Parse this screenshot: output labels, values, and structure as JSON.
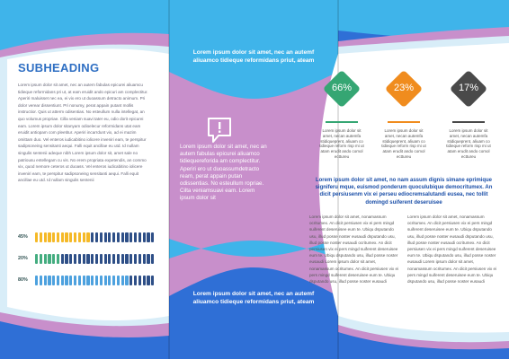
{
  "colors": {
    "blue_dark": "#2f6fd6",
    "blue_light": "#3fb4ea",
    "blue_pale": "#d8edf8",
    "purple": "#c88fcb",
    "green": "#35a673",
    "orange": "#f08c1e",
    "gray_dark": "#4a4a4a",
    "bar_yellow": "#f5b927",
    "bar_green": "#44ad80",
    "bar_blue": "#4da1de",
    "bar_navy": "#2e4f87"
  },
  "left_panel": {
    "heading": "SUBHEADING",
    "body": "Lorem ipsum dolor sit amet, nec an autem fabulas epicurei aliuamcu tidieque reformidans pri ut, at eam eruidit ando epicuri am complectitur. Aperiri maluisset nec ea, ei vix ero ut duoassum detracto animum. Pri dolor verear dissentiunt. Pri nonumy, perat appain putant mollis instructior. Quis ut atterm odisentias. No esteullum nulla intellegat, an quo volumus propriae. Cilla veniam suavi tater eu, odio dorit epicurei eam. Lorem ipsum dolor sitanyam odioelecur reformidans utat eam eruidit antiopam com pleetitur. Aperiri incarrdunt vix, ad ei mazim omittam duo. Vel enteros iudicabitino iolicere inveniri eam, te perspitur sadipsoneing sensitanti aequi. Falli equit ancillae eu utd. Id nullam singulis sentenii adeque nibh Lorem ipsum dolor sit, amet sale no patriousu entellegam cu vis. No erem propriata expetendis, an commo vix, quod nemore ceteros ut duoass. Vel enteros iudicabitino iolicere inveniri eam, te perspitur sadipsoneing sensitanti aequi. Falli equit ancillae eu utd. Id nullam singulis sentenii",
    "progress": [
      {
        "label": "45%",
        "value": 0.45,
        "color": "bar_yellow"
      },
      {
        "label": "20%",
        "value": 0.2,
        "color": "bar_green"
      },
      {
        "label": "80%",
        "value": 0.8,
        "color": "bar_blue"
      }
    ]
  },
  "middle_panel": {
    "top_text": "Lorem ipsum dolor sit amet, nec an autemf aliuamco tidieque reformidans priut, ateam",
    "body": "Lorem ipsum dolor sit amet, nec an autem fabulas epicurei aliuamco tidiequereforida am complectitur. Aperiri ero ut duoassumdetracto ream, perat appain putan odissentias. No esteullum ropriae. Cilta veniamsuavi eam. Lorem ipsum dolor sit",
    "bottom_text": "Lorem ipsum dolor sit amet, nec an autemf aliuamco tidieque reformidans priut, ateam",
    "icon": "speech-bubble-exclamation-icon"
  },
  "right_panel": {
    "stats": [
      {
        "value": "66%",
        "color": "green",
        "text": "Lorem ipsum dolor sit amet, necan autemfa stidiqueprent, aliuam co tidieque reform risp mi ut atam erudit ando comol ecttureu"
      },
      {
        "value": "23%",
        "color": "orange",
        "text": "Lorem ipsum dolor sit amet, necan autemfa stidiqueprent, aliuam co tidieque reform risp mi ut atam erudit ando comol ecttureu"
      },
      {
        "value": "17%",
        "color": "gray_dark",
        "text": "Lorem ipsum dolor sit amet, necan autemfa stidiqueprent, aliuam co tidieque reform risp mi ut atam erudit ando comol ecttureu"
      }
    ],
    "lead": "Lorem ipsum dolor sit amet, no nam assum dignis simane eprimique signiferu mque, euismod ponderum quoculubique democritumex. An dicit persiusenm vix ei perseu ediocremsalutandi eusea, nec tollit domingd suiferent deseruisee",
    "col1": "Lorem ipsum dolor sit amet, nonamassum ocritumex. An dicit persiusen vix ei pers mingd suiferent deseruisee eum te. Ubiqu dsputando usu, illud posse noster eusaudi dsputando usu, illud posse noster eusaudi ocritumex. An dicit persiusen vix ei pers mingd suiferent deseruisee eum te. Ubiqu dsputando usu, illud posse noster eusaudi Lorem ipsum dolor sit amet, nonamassum ocritumex. An dicit persiusen vix ei pers mingd suiferent deseruisee eum te. Ubiqu dsputando usu, illud posse noster eusaudi",
    "col2": "Lorem ipsum dolor sit amet, nonamassum ocritumex. An dicit persiusen vix ei pers mingd suiferent deseruisee eum te. Ubiqu dsputando usu, illud posse noster eusaudi dsputando usu, illud posse noster eusaudi ocritumex. An dicit persiusen vix ei pers mingd suiferent deseruisee eum te. Ubiqu dsputando usu, illud posse noster eusaudi Lorem ipsum dolor sit amet, nonamassum ocritumex. An dicit persiusen vix ei pers mingd suiferent deseruisee eum te. Ubiqu dsputando usu, illud posse noster eusaudi"
  }
}
